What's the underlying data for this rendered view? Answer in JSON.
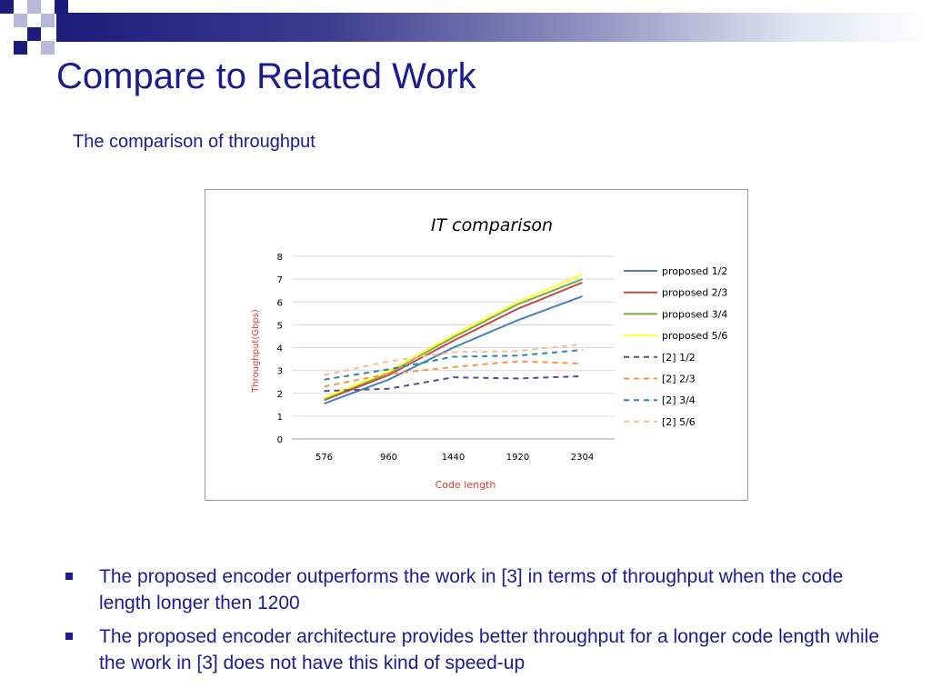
{
  "slide": {
    "title": "Compare to Related Work",
    "subtitle": "The comparison of throughput",
    "bullets": [
      "The proposed encoder outperforms the work in [3] in terms of throughput when the code length longer then 1200",
      "The proposed encoder architecture provides better throughput for a longer code length while the work in [3] does not have this kind of speed-up"
    ],
    "colors": {
      "title": "#1c1c8c",
      "bar_dark": "#1c1c7a",
      "square_light": "#b8b8dc"
    }
  },
  "chart_data": {
    "type": "line",
    "title": "IT comparison",
    "xlabel": "Code length",
    "ylabel": "Throughput(Gbps)",
    "categories": [
      "576",
      "960",
      "1440",
      "1920",
      "2304"
    ],
    "ylim": [
      0,
      8
    ],
    "yticks": [
      "0",
      "1",
      "2",
      "3",
      "4",
      "5",
      "6",
      "7",
      "8"
    ],
    "grid": true,
    "legend_position": "right",
    "series": [
      {
        "name": "proposed 1/2",
        "values": [
          1.55,
          2.6,
          4.0,
          5.2,
          6.25
        ],
        "color": "#4a7ebb",
        "dashed": false
      },
      {
        "name": "proposed 2/3",
        "values": [
          1.7,
          2.8,
          4.3,
          5.7,
          6.85
        ],
        "color": "#be4b48",
        "dashed": false
      },
      {
        "name": "proposed 3/4",
        "values": [
          1.75,
          2.9,
          4.45,
          5.9,
          7.0
        ],
        "color": "#7ea83f",
        "dashed": false
      },
      {
        "name": "proposed 5/6",
        "values": [
          1.8,
          2.95,
          4.55,
          6.0,
          7.2
        ],
        "color": "#ffff33",
        "dashed": false
      },
      {
        "name": "[2] 1/2",
        "values": [
          2.1,
          2.2,
          2.7,
          2.65,
          2.75
        ],
        "color": "#5f4b8b",
        "dashed": true
      },
      {
        "name": "[2] 2/3",
        "values": [
          2.3,
          2.85,
          3.15,
          3.4,
          3.3
        ],
        "color": "#f79646",
        "dashed": true
      },
      {
        "name": "[2] 3/4",
        "values": [
          2.6,
          3.05,
          3.6,
          3.65,
          3.9
        ],
        "color": "#31859c",
        "dashed": true
      },
      {
        "name": "[2] 5/6",
        "values": [
          2.8,
          3.4,
          3.8,
          3.85,
          4.15
        ],
        "color": "#fac090",
        "dashed": true
      }
    ]
  }
}
